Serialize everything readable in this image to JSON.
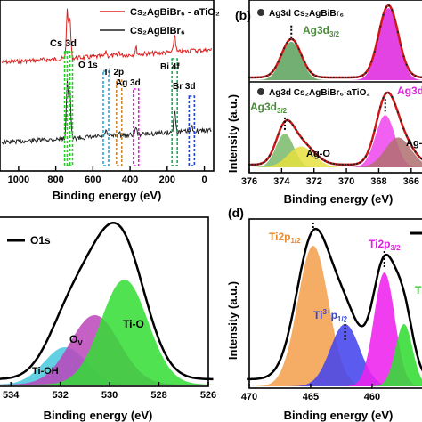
{
  "chart_data": [
    {
      "panel": "a",
      "type": "line",
      "title": "",
      "xlabel": "Binding energy (eV)",
      "ylabel": "",
      "xlim": [
        1100,
        -50
      ],
      "xticks": [
        "1000",
        "800",
        "600",
        "400",
        "200",
        "0"
      ],
      "xtick_values": [
        1000,
        800,
        600,
        400,
        200,
        0
      ],
      "legend": [
        "Cs₂AgBiBr₆ - aTiO₂",
        "Cs₂AgBiBr₆"
      ],
      "series_colors": [
        "#e02020",
        "#222222"
      ],
      "annotations": {
        "cs3d": "Cs 3d",
        "o1s": "O 1s",
        "ti2p": "Ti 2p",
        "ag3d": "Ag 3d",
        "bi4f": "Bi 4f",
        "br3d": "Br 3d"
      },
      "peaks_eV": {
        "cs3d": [
          738,
          724
        ],
        "o1s": 530,
        "ti2p": 459,
        "ag3d": 368,
        "bi4f": 160,
        "br3d": 68
      },
      "marker_colors": {
        "cs3d": "#22cc22",
        "o1s": "#22aadd",
        "ti2p": "#cc8833",
        "ag3d": "#dd22dd",
        "bi4f": "#22aa55",
        "br3d": "#2244cc"
      }
    },
    {
      "panel": "b",
      "type": "area",
      "label": "(b)",
      "xlabel": "Binding energy (eV)",
      "ylabel": "Intensity (a.u.)",
      "xlim": [
        376,
        365
      ],
      "xticks": [
        "376",
        "374",
        "372",
        "370",
        "368",
        "366"
      ],
      "xtick_values": [
        376,
        374,
        372,
        370,
        368,
        366
      ],
      "top": {
        "legend": "Ag3d Cs₂AgBiBr₆",
        "peaks": [
          {
            "label": "Ag3d3/2",
            "center": 373.4,
            "color": "#5aa05a"
          },
          {
            "label": "",
            "center": 367.4,
            "color": "#dd22dd"
          }
        ]
      },
      "bottom": {
        "legend": "Ag3d Cs₂AgBiBr₆-aTiO₂",
        "peaks": [
          {
            "label": "Ag3d3/2",
            "center": 373.8,
            "color": "#7ab86a"
          },
          {
            "label": "Ag-O",
            "center": 372.8,
            "color": "#e6e040"
          },
          {
            "label": "Ag3d",
            "center": 367.6,
            "color": "#ee44ee"
          },
          {
            "label": "Ag-",
            "center": 366.8,
            "color": "#b07070"
          }
        ]
      }
    },
    {
      "panel": "c",
      "type": "area",
      "xlabel": "Binding energy (eV)",
      "ylabel": "",
      "xlim": [
        534.8,
        526
      ],
      "xticks": [
        "534",
        "532",
        "530",
        "528",
        "526"
      ],
      "xtick_values": [
        534,
        532,
        530,
        528,
        526
      ],
      "legend": "O1s",
      "components": [
        {
          "label": "Ti-OH",
          "center": 531.8,
          "color": "#44c8dd"
        },
        {
          "label": "Ov",
          "center": 530.6,
          "color": "#bb44bb"
        },
        {
          "label": "Ti-O",
          "center": 529.4,
          "color": "#33dd33"
        }
      ]
    },
    {
      "panel": "d",
      "type": "area",
      "label": "(d)",
      "xlabel": "Binding energy (eV)",
      "ylabel": "Intensity (a.u.)",
      "xlim": [
        470,
        455.5
      ],
      "xticks": [
        "470",
        "465",
        "460"
      ],
      "xtick_values": [
        470,
        465,
        460
      ],
      "components": [
        {
          "label": "Ti2p1/2",
          "center": 464.8,
          "color": "#f4a050"
        },
        {
          "label": "Ti3+ p1/2",
          "center": 462.2,
          "color": "#4444ee"
        },
        {
          "label": "Ti2p3/2",
          "center": 459.0,
          "color": "#ee22ee"
        },
        {
          "label": "Ti",
          "center": 457.4,
          "color": "#33dd33"
        }
      ]
    }
  ],
  "texts": {
    "a_xlabel": "Binding energy (eV)",
    "b_xlabel": "Binding energy (eV)",
    "c_xlabel": "Binding energy (eV)",
    "d_xlabel": "Binding energy (eV)",
    "ylabel_int": "Intensity (a.u.)",
    "b_label": "(b)",
    "d_label": "(d)",
    "a_leg1": "Cs₂AgBiBr₆ - aTiO₂",
    "a_leg2": "Cs₂AgBiBr₆",
    "a_cs3d": "Cs 3d",
    "a_o1s": "O 1s",
    "a_ti2p": "Ti 2p",
    "a_ag3d": "Ag 3d",
    "a_bi4f": "Bi 4f",
    "a_br3d": "Br 3d",
    "b_top_leg": "Ag3d Cs₂AgBiBr₆",
    "b_top_peak": "Ag3d",
    "b_top_peak_sub": "3/2",
    "b_bot_leg": "Ag3d Cs₂AgBiBr₆-aTiO₂",
    "b_bot_peak1": "Ag3d",
    "b_bot_peak1_sub": "3/2",
    "b_bot_ago": "Ag-O",
    "b_bot_ag3d": "Ag3d",
    "b_bot_ag_cut": "Ag-",
    "c_leg": "O1s",
    "c_tio": "Ti-O",
    "c_ov": "O",
    "c_ov_sub": "V",
    "c_tioh": "Ti-OH",
    "d_ti2p12": "Ti2p",
    "d_ti2p12_sub": "1/2",
    "d_ti3": "Ti",
    "d_ti3_sup": "3+",
    "d_ti3_p": "p",
    "d_ti3_sub": "1/2",
    "d_ti2p32": "Ti2p",
    "d_ti2p32_sub": "3/2",
    "d_ti_cut": "Ti"
  }
}
